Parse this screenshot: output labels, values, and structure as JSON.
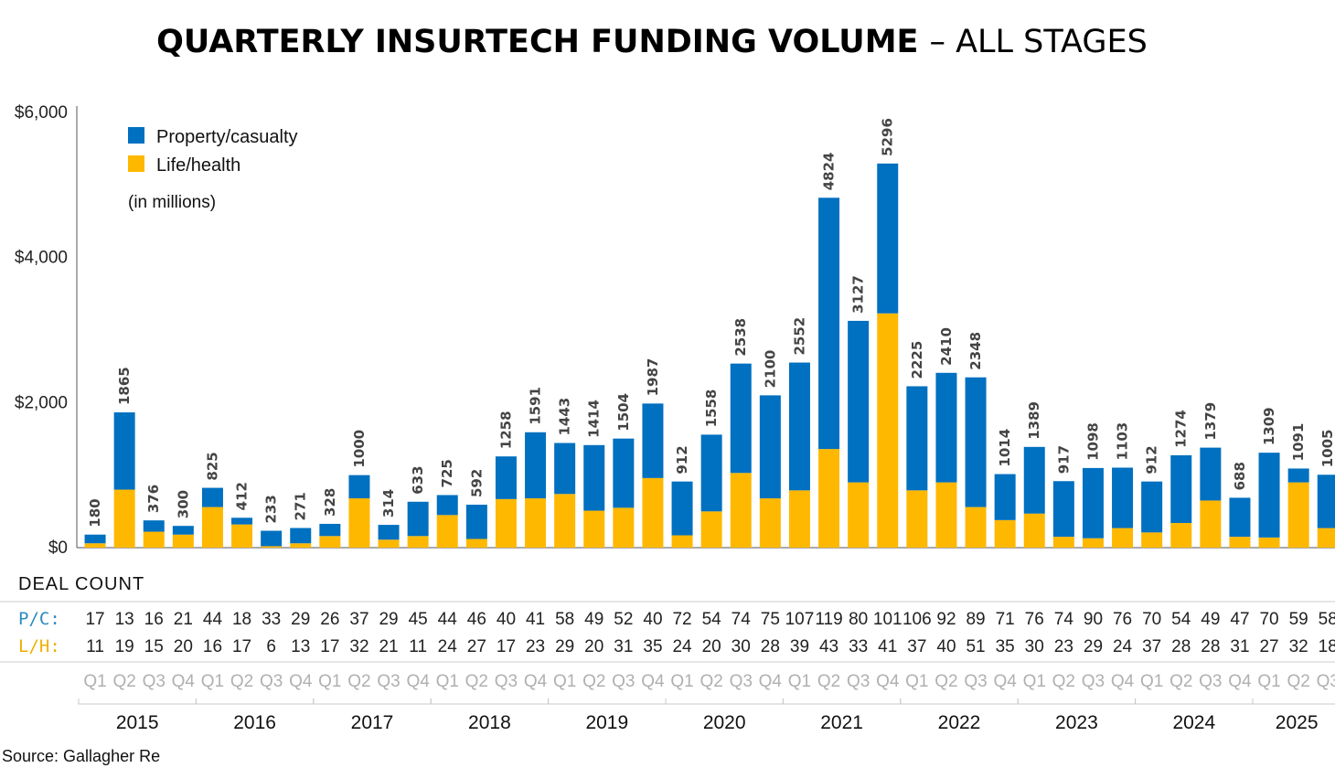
{
  "chart_data": {
    "type": "bar",
    "stacked": true,
    "title": "QUARTERLY INSURTECH FUNDING VOLUME",
    "subtitle": "– ALL STAGES",
    "note": "(in millions)",
    "source": "Source: Gallagher Re",
    "ylim": [
      0,
      6000
    ],
    "yticks": [
      "$0",
      "$2,000",
      "$4,000",
      "$6,000"
    ],
    "ytick_values": [
      0,
      2000,
      4000,
      6000
    ],
    "legend": [
      {
        "name": "Property/casualty",
        "color": "#0070C0"
      },
      {
        "name": "Life/health",
        "color": "#FFB800"
      }
    ],
    "legend_position": "top-left",
    "quarters": [
      "Q1",
      "Q2",
      "Q3",
      "Q4",
      "Q1",
      "Q2",
      "Q3",
      "Q4",
      "Q1",
      "Q2",
      "Q3",
      "Q4",
      "Q1",
      "Q2",
      "Q3",
      "Q4",
      "Q1",
      "Q2",
      "Q3",
      "Q4",
      "Q1",
      "Q2",
      "Q3",
      "Q4",
      "Q1",
      "Q2",
      "Q3",
      "Q4",
      "Q1",
      "Q2",
      "Q3",
      "Q4",
      "Q1",
      "Q2",
      "Q3",
      "Q4",
      "Q1",
      "Q2",
      "Q3",
      "Q4",
      "Q1",
      "Q2",
      "Q3"
    ],
    "years": [
      "2015",
      "2016",
      "2017",
      "2018",
      "2019",
      "2020",
      "2021",
      "2022",
      "2023",
      "2024",
      "2025"
    ],
    "totals": [
      180,
      1865,
      376,
      300,
      825,
      412,
      233,
      271,
      328,
      1000,
      314,
      633,
      725,
      592,
      1258,
      1591,
      1443,
      1414,
      1504,
      1987,
      912,
      1558,
      2538,
      2100,
      2552,
      4824,
      3127,
      5296,
      2225,
      2410,
      2348,
      1014,
      1389,
      917,
      1098,
      1103,
      912,
      1274,
      1379,
      688,
      1309,
      1091,
      1005
    ],
    "series": [
      {
        "name": "Life/health",
        "values": [
          60,
          800,
          220,
          180,
          560,
          320,
          20,
          60,
          160,
          680,
          110,
          160,
          450,
          120,
          670,
          680,
          740,
          510,
          550,
          960,
          170,
          500,
          1030,
          680,
          790,
          1360,
          900,
          3230,
          790,
          900,
          560,
          380,
          470,
          150,
          130,
          270,
          210,
          340,
          650,
          150,
          140,
          900,
          270
        ]
      },
      {
        "name": "Property/casualty",
        "values": [
          120,
          1065,
          156,
          120,
          265,
          92,
          213,
          211,
          168,
          320,
          204,
          473,
          275,
          472,
          588,
          911,
          703,
          904,
          954,
          1027,
          742,
          1058,
          1508,
          1420,
          1762,
          3464,
          2227,
          2066,
          1435,
          1510,
          1788,
          634,
          919,
          767,
          968,
          833,
          702,
          934,
          729,
          538,
          1169,
          191,
          735
        ]
      }
    ],
    "deal_count": {
      "heading": "DEAL COUNT",
      "pc_label": "P/C:",
      "lh_label": "L/H:",
      "pc": [
        "17",
        "13",
        "16",
        "21",
        "44",
        "18",
        "33",
        "29",
        "26",
        "37",
        "29",
        "45",
        "44",
        "46",
        "40",
        "41",
        "58",
        "49",
        "52",
        "40",
        "72",
        "54",
        "74",
        "75",
        "107",
        "119",
        "80",
        "101",
        "106",
        "92",
        "89",
        "71",
        "76",
        "74",
        "90",
        "76",
        "70",
        "54",
        "49",
        "47",
        "70",
        "59",
        "58"
      ],
      "lh": [
        "11",
        "19",
        "15",
        "20",
        "16",
        "17",
        "6",
        "13",
        "17",
        "32",
        "21",
        "11",
        "24",
        "27",
        "17",
        "23",
        "29",
        "20",
        "31",
        "35",
        "24",
        "20",
        "30",
        "28",
        "39",
        "43",
        "33",
        "41",
        "37",
        "40",
        "51",
        "35",
        "30",
        "23",
        "29",
        "24",
        "37",
        "28",
        "28",
        "31",
        "27",
        "32",
        "18"
      ]
    },
    "colors": {
      "pc": "#0070C0",
      "lh": "#FFB800",
      "pc_label": "#2E8BC0",
      "lh_label": "#F0B000"
    }
  }
}
